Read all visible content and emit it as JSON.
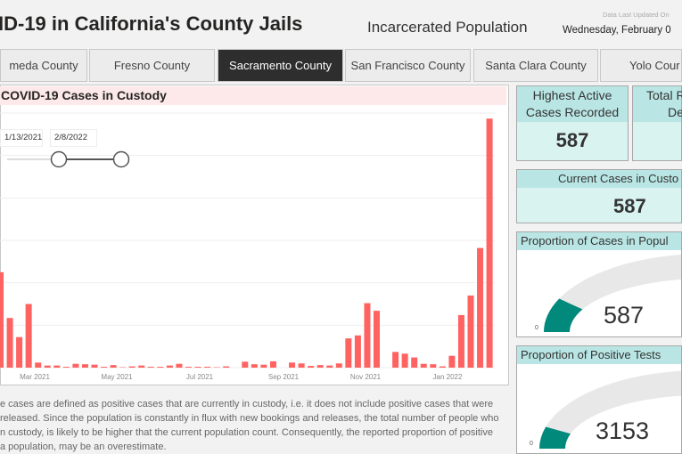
{
  "header": {
    "title": "ID-19 in California's County Jails",
    "subtitle": "Incarcerated Population",
    "updated_label": "Data Last Updated On",
    "updated_date": "Wednesday, February 0"
  },
  "tabs": [
    {
      "label": "meda County",
      "active": false
    },
    {
      "label": "Fresno County",
      "active": false
    },
    {
      "label": "Sacramento County",
      "active": true
    },
    {
      "label": "San Francisco County",
      "active": false
    },
    {
      "label": "Santa Clara County",
      "active": false
    },
    {
      "label": "Yolo Cour",
      "active": false
    }
  ],
  "slicer": {
    "start": "1/13/2021",
    "end": "2/8/2022"
  },
  "chart_data": {
    "type": "bar",
    "title": "COVID-19 Cases in Custody",
    "color": "#ff6361",
    "ylim": [
      0,
      600
    ],
    "grid": true,
    "x_tick_labels": [
      "Mar 2021",
      "May 2021",
      "Jul 2021",
      "Sep 2021",
      "Nov 2021",
      "Jan 2022"
    ],
    "values": [
      225,
      117,
      72,
      150,
      12,
      5,
      5,
      2,
      9,
      8,
      7,
      2,
      6,
      1,
      3,
      5,
      2,
      2,
      5,
      9,
      2,
      2,
      2,
      1,
      3,
      0,
      14,
      8,
      7,
      15,
      0,
      12,
      10,
      4,
      6,
      5,
      10,
      69,
      76,
      152,
      134,
      0,
      37,
      33,
      24,
      9,
      8,
      3,
      28,
      124,
      170,
      282,
      587
    ]
  },
  "note": [
    "e cases are defined as positive cases that are currently in custody, i.e. it does not include positive cases that were",
    "released. Since the population is constantly in flux with new bookings and releases, the total number of people who",
    "n custody, is likely to be higher that the current population count. Consequently, the reported proportion of positive",
    " a population, may be an overestimate."
  ],
  "cards": {
    "highest": {
      "line1": "Highest Active",
      "line2": "Cases Recorded",
      "value": "587"
    },
    "total": {
      "line1": "Total R",
      "line2": "De"
    },
    "current": {
      "label": "Current Cases in Custo",
      "value": "587"
    }
  },
  "gauges": [
    {
      "title": "Proportion of Cases in Popul",
      "value": "587",
      "min": "0",
      "fill_fraction": 0.14,
      "color": "#01897b"
    },
    {
      "title": "Proportion of Positive Tests",
      "value": "3153",
      "min": "0",
      "fill_fraction": 0.09,
      "color": "#01897b"
    }
  ]
}
